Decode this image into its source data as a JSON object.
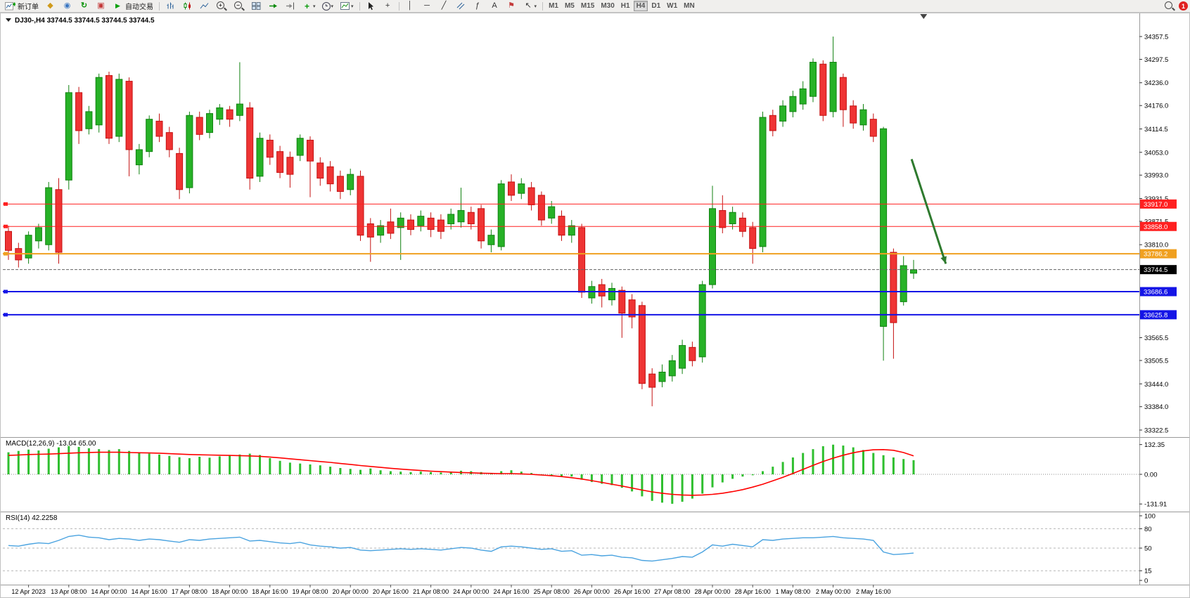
{
  "toolbar": {
    "new_order": "新订单",
    "auto_trading": "自动交易",
    "timeframes": [
      "M1",
      "M5",
      "M15",
      "M30",
      "H1",
      "H4",
      "D1",
      "W1",
      "MN"
    ],
    "active_timeframe": "H4",
    "notification_count": "1"
  },
  "icons": {
    "badge": "◆",
    "user": "◉",
    "refresh": "↻",
    "alert": "▣",
    "play": "▶",
    "plus": "+",
    "minus": "−",
    "caret": "▾",
    "crosshair": "+",
    "vline": "│",
    "hline": "─",
    "trendline": "╱",
    "fibo": "ƒ",
    "text": "A",
    "flag": "⚑",
    "arrow_nw": "↖"
  },
  "chart": {
    "symbol_title": "DJ30-,H4",
    "ohlc_readout": "33744.5 33744.5 33744.5 33744.5"
  },
  "chart_data": {
    "type": "candlestick",
    "symbol": "DJ30-",
    "timeframe": "H4",
    "price_axis": {
      "max": 34357.5,
      "min": 33322.5,
      "ticks": [
        34357.5,
        34297.5,
        34236.0,
        34176.0,
        34114.5,
        34053.0,
        33993.0,
        33931.5,
        33871.5,
        33810.0,
        33565.5,
        33505.5,
        33444.0,
        33384.0,
        33322.5
      ]
    },
    "current_price": 33744.5,
    "hlines": [
      {
        "price": 33917.0,
        "label": "33917.0",
        "color": "#ff2020",
        "width": 1
      },
      {
        "price": 33858.0,
        "label": "33858.0",
        "color": "#ff2020",
        "width": 1
      },
      {
        "price": 33786.2,
        "label": "33786.2",
        "color": "#f0a020",
        "width": 2
      },
      {
        "price": 33686.6,
        "label": "33686.6",
        "color": "#1414e6",
        "width": 2
      },
      {
        "price": 33625.8,
        "label": "33625.8",
        "color": "#1414e6",
        "width": 2
      }
    ],
    "candles": [
      [
        33845,
        33860,
        33770,
        33795
      ],
      [
        33800,
        33815,
        33750,
        33770
      ],
      [
        33775,
        33845,
        33760,
        33835
      ],
      [
        33820,
        33865,
        33800,
        33855
      ],
      [
        33810,
        33975,
        33795,
        33960
      ],
      [
        33955,
        33985,
        33760,
        33790
      ],
      [
        33980,
        34230,
        33955,
        34210
      ],
      [
        34210,
        34225,
        34075,
        34110
      ],
      [
        34115,
        34175,
        34100,
        34160
      ],
      [
        34125,
        34260,
        34105,
        34250
      ],
      [
        34255,
        34265,
        34075,
        34090
      ],
      [
        34095,
        34260,
        34080,
        34245
      ],
      [
        34240,
        34250,
        33990,
        34060
      ],
      [
        34020,
        34075,
        33995,
        34060
      ],
      [
        34055,
        34150,
        34040,
        34140
      ],
      [
        34135,
        34155,
        34080,
        34095
      ],
      [
        34105,
        34120,
        34040,
        34060
      ],
      [
        34050,
        34065,
        33930,
        33955
      ],
      [
        33960,
        34160,
        33945,
        34150
      ],
      [
        34145,
        34160,
        34085,
        34100
      ],
      [
        34105,
        34165,
        34090,
        34155
      ],
      [
        34140,
        34180,
        34125,
        34170
      ],
      [
        34165,
        34175,
        34120,
        34140
      ],
      [
        34150,
        34290,
        34135,
        34180
      ],
      [
        34170,
        34185,
        33955,
        33985
      ],
      [
        33990,
        34105,
        33975,
        34090
      ],
      [
        34085,
        34100,
        34020,
        34040
      ],
      [
        34055,
        34070,
        33985,
        34000
      ],
      [
        34040,
        34055,
        33960,
        33995
      ],
      [
        34045,
        34100,
        34030,
        34090
      ],
      [
        34085,
        34095,
        33935,
        34030
      ],
      [
        34025,
        34040,
        33965,
        33985
      ],
      [
        34015,
        34030,
        33950,
        33970
      ],
      [
        33990,
        34005,
        33930,
        33950
      ],
      [
        33955,
        34010,
        33940,
        33995
      ],
      [
        33990,
        34005,
        33820,
        33835
      ],
      [
        33865,
        33880,
        33765,
        33830
      ],
      [
        33835,
        33875,
        33815,
        33860
      ],
      [
        33870,
        33905,
        33825,
        33840
      ],
      [
        33855,
        33895,
        33770,
        33880
      ],
      [
        33875,
        33890,
        33835,
        33850
      ],
      [
        33860,
        33900,
        33845,
        33885
      ],
      [
        33880,
        33895,
        33830,
        33850
      ],
      [
        33875,
        33890,
        33825,
        33845
      ],
      [
        33865,
        33905,
        33850,
        33890
      ],
      [
        33870,
        33960,
        33855,
        33900
      ],
      [
        33895,
        33910,
        33850,
        33865
      ],
      [
        33905,
        33915,
        33800,
        33820
      ],
      [
        33810,
        33850,
        33790,
        33835
      ],
      [
        33805,
        33980,
        33795,
        33970
      ],
      [
        33975,
        33995,
        33925,
        33940
      ],
      [
        33945,
        33985,
        33930,
        33970
      ],
      [
        33960,
        33975,
        33900,
        33915
      ],
      [
        33940,
        33950,
        33860,
        33875
      ],
      [
        33880,
        33925,
        33865,
        33910
      ],
      [
        33885,
        33900,
        33820,
        33835
      ],
      [
        33835,
        33875,
        33815,
        33860
      ],
      [
        33855,
        33865,
        33670,
        33685
      ],
      [
        33670,
        33715,
        33655,
        33700
      ],
      [
        33705,
        33720,
        33645,
        33675
      ],
      [
        33665,
        33710,
        33650,
        33695
      ],
      [
        33690,
        33700,
        33565,
        33630
      ],
      [
        33665,
        33680,
        33590,
        33620
      ],
      [
        33650,
        33660,
        33430,
        33445
      ],
      [
        33470,
        33485,
        33385,
        33435
      ],
      [
        33450,
        33495,
        33435,
        33475
      ],
      [
        33465,
        33520,
        33450,
        33505
      ],
      [
        33485,
        33560,
        33470,
        33545
      ],
      [
        33540,
        33555,
        33490,
        33505
      ],
      [
        33515,
        33715,
        33500,
        33705
      ],
      [
        33705,
        33965,
        33695,
        33905
      ],
      [
        33900,
        33940,
        33840,
        33855
      ],
      [
        33865,
        33910,
        33850,
        33895
      ],
      [
        33880,
        33895,
        33830,
        33845
      ],
      [
        33855,
        33870,
        33760,
        33800
      ],
      [
        33805,
        34160,
        33790,
        34145
      ],
      [
        34150,
        34165,
        34095,
        34110
      ],
      [
        34135,
        34190,
        34120,
        34175
      ],
      [
        34160,
        34215,
        34145,
        34200
      ],
      [
        34180,
        34240,
        34165,
        34220
      ],
      [
        34200,
        34300,
        34185,
        34290
      ],
      [
        34285,
        34295,
        34135,
        34150
      ],
      [
        34160,
        34357.5,
        34145,
        34290
      ],
      [
        34250,
        34260,
        34120,
        34165
      ],
      [
        34175,
        34190,
        34115,
        34130
      ],
      [
        34125,
        34180,
        34110,
        34165
      ],
      [
        34140,
        34155,
        34080,
        34095
      ],
      [
        33595,
        34120,
        33505,
        34115
      ],
      [
        33790,
        33800,
        33510,
        33605
      ],
      [
        33660,
        33780,
        33650,
        33755
      ],
      [
        33735,
        33770,
        33720,
        33744.5
      ]
    ],
    "dates": [
      "12 Apr 2023",
      "13 Apr 08:00",
      "14 Apr 00:00",
      "14 Apr 16:00",
      "17 Apr 08:00",
      "18 Apr 00:00",
      "18 Apr 16:00",
      "19 Apr 08:00",
      "20 Apr 00:00",
      "20 Apr 16:00",
      "21 Apr 08:00",
      "24 Apr 00:00",
      "24 Apr 16:00",
      "25 Apr 08:00",
      "26 Apr 00:00",
      "26 Apr 16:00",
      "27 Apr 08:00",
      "28 Apr 00:00",
      "28 Apr 16:00",
      "1 May 08:00",
      "2 May 00:00",
      "2 May 16:00"
    ],
    "date_label_start_index": 2,
    "date_label_step": 4,
    "macd": {
      "label": "MACD(12,26,9) -13.04 65.00",
      "ticks": [
        132.35,
        0.0,
        -131.91
      ],
      "range": [
        -150,
        150
      ],
      "histogram": [
        98,
        104,
        110,
        106,
        114,
        120,
        126,
        122,
        116,
        112,
        108,
        112,
        104,
        96,
        92,
        88,
        82,
        76,
        72,
        78,
        74,
        80,
        84,
        88,
        92,
        86,
        72,
        60,
        52,
        48,
        44,
        40,
        34,
        28,
        24,
        20,
        26,
        18,
        14,
        12,
        10,
        12,
        10,
        8,
        12,
        16,
        14,
        10,
        6,
        14,
        18,
        12,
        6,
        0,
        -6,
        -12,
        -10,
        -24,
        -34,
        -42,
        -48,
        -60,
        -76,
        -98,
        -118,
        -126,
        -131,
        -122,
        -108,
        -86,
        -58,
        -36,
        -20,
        -10,
        -4,
        14,
        34,
        55,
        75,
        95,
        112,
        125,
        132,
        128,
        120,
        108,
        95,
        85,
        75,
        68,
        63
      ],
      "signal": [
        84,
        86,
        88,
        89,
        90,
        92,
        94,
        96,
        97,
        98,
        98,
        98,
        97,
        96,
        95,
        94,
        92,
        90,
        88,
        87,
        86,
        85,
        84,
        83,
        82,
        80,
        77,
        73,
        69,
        65,
        61,
        57,
        53,
        48,
        44,
        39,
        35,
        31,
        27,
        23,
        20,
        17,
        14,
        12,
        10,
        8,
        7,
        5,
        4,
        3,
        3,
        2,
        0,
        -3,
        -6,
        -10,
        -15,
        -21,
        -28,
        -36,
        -44,
        -52,
        -61,
        -70,
        -78,
        -84,
        -89,
        -92,
        -93,
        -92,
        -89,
        -84,
        -77,
        -68,
        -57,
        -44,
        -29,
        -13,
        4,
        22,
        40,
        57,
        72,
        85,
        96,
        104,
        109,
        110,
        107,
        97,
        82
      ]
    },
    "rsi": {
      "label": "RSI(14) 42.2258",
      "ticks": [
        100,
        80,
        50,
        15,
        0
      ],
      "levels": [
        80,
        50,
        15
      ],
      "range": [
        0,
        100
      ],
      "values": [
        54,
        53,
        56,
        58,
        57,
        62,
        68,
        70,
        67,
        66,
        63,
        65,
        64,
        62,
        64,
        63,
        61,
        59,
        63,
        62,
        64,
        65,
        66,
        67,
        61,
        62,
        60,
        58,
        57,
        59,
        55,
        53,
        52,
        50,
        51,
        47,
        46,
        47,
        48,
        49,
        48,
        49,
        48,
        47,
        49,
        51,
        50,
        47,
        45,
        52,
        53,
        52,
        50,
        48,
        49,
        45,
        46,
        39,
        40,
        38,
        39,
        36,
        35,
        31,
        30,
        32,
        34,
        37,
        36,
        44,
        55,
        53,
        56,
        54,
        52,
        63,
        62,
        64,
        65,
        66,
        66,
        67,
        68,
        66,
        65,
        64,
        62,
        44,
        40,
        41,
        42.23
      ]
    },
    "annotation_arrow": {
      "from_index": 89.8,
      "from_price": 34035,
      "to_index": 93.2,
      "to_price": 33760,
      "color": "#2e7a2e"
    },
    "shift_marker_index": 91,
    "colors": {
      "bull_fill": "#27b227",
      "bull_stroke": "#118211",
      "bear_fill": "#ef3434",
      "bear_stroke": "#c41212",
      "macd_bar": "#2fbf2f",
      "macd_signal": "#ff0000",
      "rsi_line": "#4aa3e0",
      "current_price_box": "#000000"
    }
  }
}
